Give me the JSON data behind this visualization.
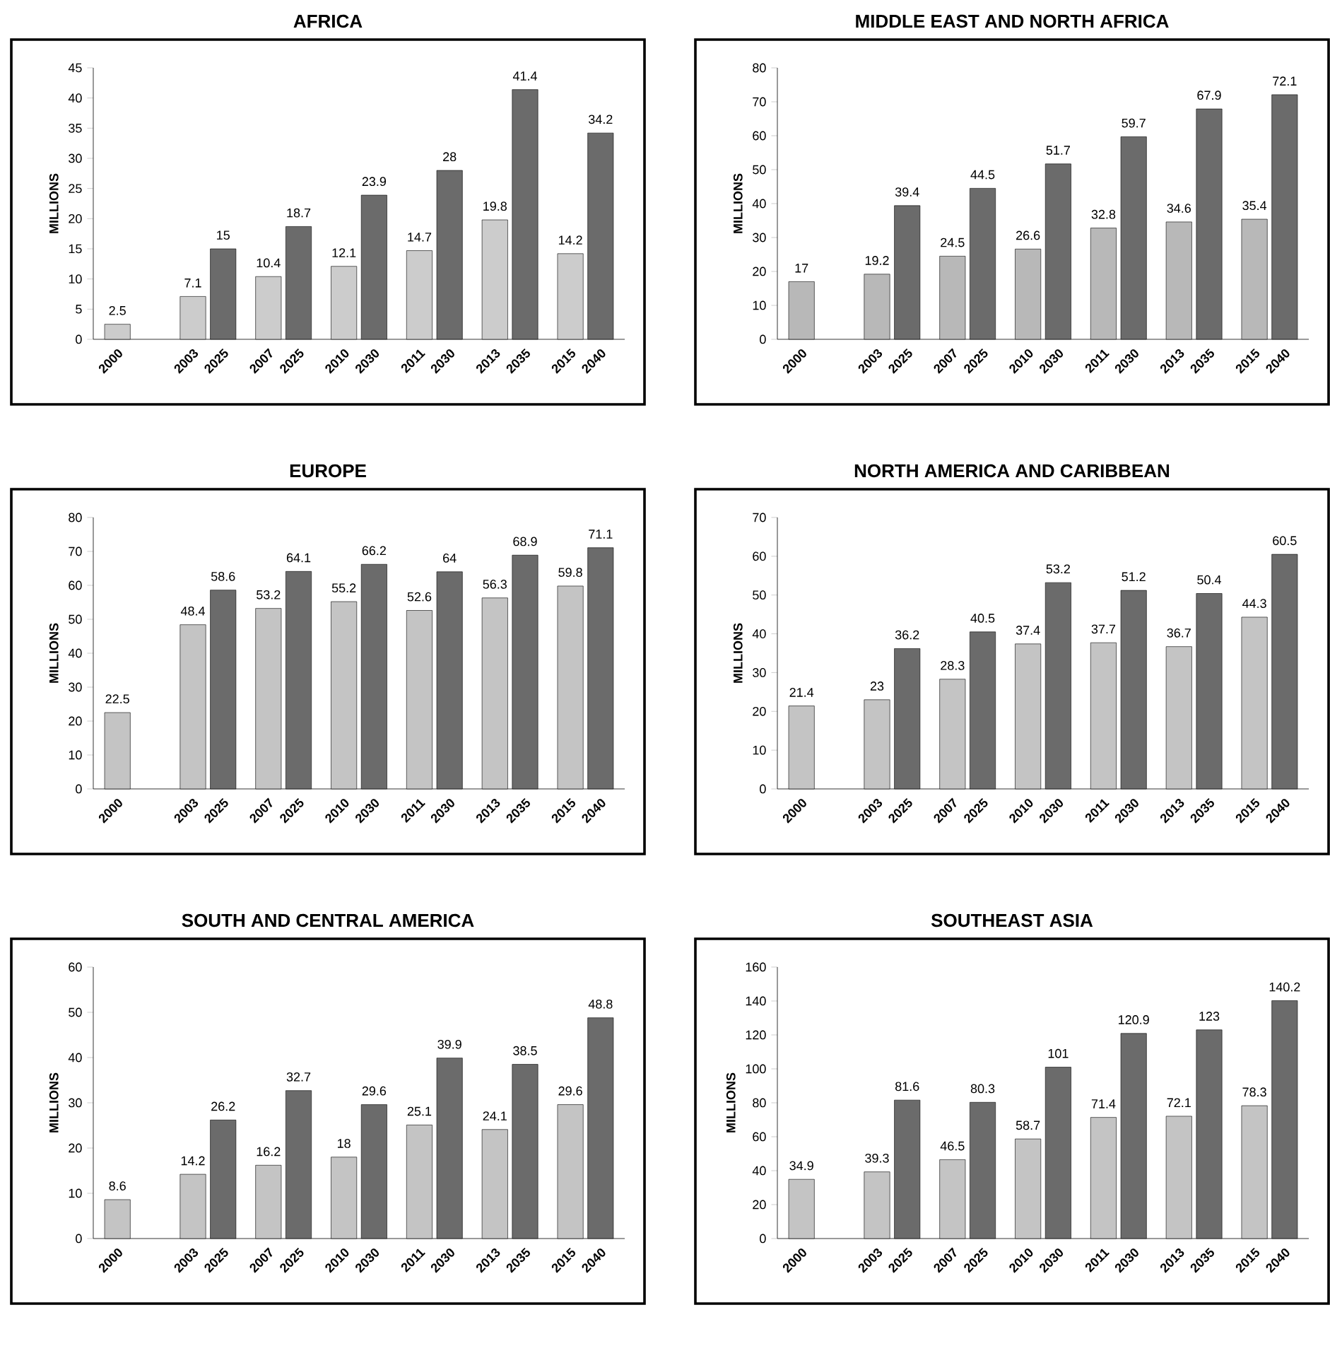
{
  "chart_data": [
    {
      "type": "bar",
      "title": "AFRICA",
      "ylabel": "MILLIONS",
      "categories": [
        "2000",
        null,
        "2003",
        "2025",
        "2007",
        "2025",
        "2010",
        "2030",
        "2011",
        "2030",
        "2013",
        "2035",
        "2015",
        "2040"
      ],
      "values": [
        2.5,
        null,
        7.1,
        15,
        10.4,
        18.7,
        12.1,
        23.9,
        14.7,
        28,
        19.8,
        41.4,
        14.2,
        34.2
      ],
      "colors": [
        "#cccccc",
        null,
        "#cccccc",
        "#6b6b6b",
        "#cccccc",
        "#6b6b6b",
        "#cccccc",
        "#6b6b6b",
        "#cccccc",
        "#6b6b6b",
        "#cccccc",
        "#6b6b6b",
        "#cccccc",
        "#6b6b6b"
      ],
      "ylim": [
        0,
        45
      ],
      "yticks": [
        0,
        5,
        10,
        15,
        20,
        25,
        30,
        35,
        40,
        45
      ],
      "data_labels": true
    },
    {
      "type": "bar",
      "title": "MIDDLE EAST AND NORTH AFRICA",
      "ylabel": "MILLIONS",
      "categories": [
        "2000",
        null,
        "2003",
        "2025",
        "2007",
        "2025",
        "2010",
        "2030",
        "2011",
        "2030",
        "2013",
        "2035",
        "2015",
        "2040"
      ],
      "values": [
        17,
        null,
        19.2,
        39.4,
        24.5,
        44.5,
        26.6,
        51.7,
        32.8,
        59.7,
        34.6,
        67.9,
        35.4,
        72.1
      ],
      "colors": [
        "#b8b8b8",
        null,
        "#b8b8b8",
        "#6b6b6b",
        "#b8b8b8",
        "#6b6b6b",
        "#b8b8b8",
        "#6b6b6b",
        "#b8b8b8",
        "#6b6b6b",
        "#b8b8b8",
        "#6b6b6b",
        "#b8b8b8",
        "#6b6b6b"
      ],
      "ylim": [
        0,
        80
      ],
      "yticks": [
        0,
        10,
        20,
        30,
        40,
        50,
        60,
        70,
        80
      ],
      "data_labels": true
    },
    {
      "type": "bar",
      "title": "EUROPE",
      "ylabel": "MILLIONS",
      "categories": [
        "2000",
        null,
        "2003",
        "2025",
        "2007",
        "2025",
        "2010",
        "2030",
        "2011",
        "2030",
        "2013",
        "2035",
        "2015",
        "2040"
      ],
      "values": [
        22.5,
        null,
        48.4,
        58.6,
        53.2,
        64.1,
        55.2,
        66.2,
        52.6,
        64,
        56.3,
        68.9,
        59.8,
        71.1
      ],
      "colors": [
        "#c4c4c4",
        null,
        "#c4c4c4",
        "#6b6b6b",
        "#c4c4c4",
        "#6b6b6b",
        "#c4c4c4",
        "#6b6b6b",
        "#c4c4c4",
        "#6b6b6b",
        "#c4c4c4",
        "#6b6b6b",
        "#c4c4c4",
        "#6b6b6b"
      ],
      "ylim": [
        0,
        80
      ],
      "yticks": [
        0,
        10,
        20,
        30,
        40,
        50,
        60,
        70,
        80
      ],
      "data_labels": true
    },
    {
      "type": "bar",
      "title": "NORTH AMERICA AND CARIBBEAN",
      "ylabel": "MILLIONS",
      "categories": [
        "2000",
        null,
        "2003",
        "2025",
        "2007",
        "2025",
        "2010",
        "2030",
        "2011",
        "2030",
        "2013",
        "2035",
        "2015",
        "2040"
      ],
      "values": [
        21.4,
        null,
        23,
        36.2,
        28.3,
        40.5,
        37.4,
        53.2,
        37.7,
        51.2,
        36.7,
        50.4,
        44.3,
        60.5
      ],
      "colors": [
        "#c4c4c4",
        null,
        "#c4c4c4",
        "#6b6b6b",
        "#c4c4c4",
        "#6b6b6b",
        "#c4c4c4",
        "#6b6b6b",
        "#c4c4c4",
        "#6b6b6b",
        "#c4c4c4",
        "#6b6b6b",
        "#c4c4c4",
        "#6b6b6b"
      ],
      "ylim": [
        0,
        70
      ],
      "yticks": [
        0,
        10,
        20,
        30,
        40,
        50,
        60,
        70
      ],
      "data_labels": true
    },
    {
      "type": "bar",
      "title": "SOUTH AND CENTRAL AMERICA",
      "ylabel": "MILLIONS",
      "categories": [
        "2000",
        null,
        "2003",
        "2025",
        "2007",
        "2025",
        "2010",
        "2030",
        "2011",
        "2030",
        "2013",
        "2035",
        "2015",
        "2040"
      ],
      "values": [
        8.6,
        null,
        14.2,
        26.2,
        16.2,
        32.7,
        18,
        29.6,
        25.1,
        39.9,
        24.1,
        38.5,
        29.6,
        48.8
      ],
      "colors": [
        "#c4c4c4",
        null,
        "#c4c4c4",
        "#6b6b6b",
        "#c4c4c4",
        "#6b6b6b",
        "#c4c4c4",
        "#6b6b6b",
        "#c4c4c4",
        "#6b6b6b",
        "#c4c4c4",
        "#6b6b6b",
        "#c4c4c4",
        "#6b6b6b"
      ],
      "ylim": [
        0,
        60
      ],
      "yticks": [
        0,
        10,
        20,
        30,
        40,
        50,
        60
      ],
      "data_labels": true
    },
    {
      "type": "bar",
      "title": "SOUTHEAST ASIA",
      "ylabel": "MILLIONS",
      "categories": [
        "2000",
        null,
        "2003",
        "2025",
        "2007",
        "2025",
        "2010",
        "2030",
        "2011",
        "2030",
        "2013",
        "2035",
        "2015",
        "2040"
      ],
      "values": [
        34.9,
        null,
        39.3,
        81.6,
        46.5,
        80.3,
        58.7,
        101,
        71.4,
        120.9,
        72.1,
        123,
        78.3,
        140.2
      ],
      "colors": [
        "#c4c4c4",
        null,
        "#c4c4c4",
        "#6b6b6b",
        "#c4c4c4",
        "#6b6b6b",
        "#c4c4c4",
        "#6b6b6b",
        "#c4c4c4",
        "#6b6b6b",
        "#c4c4c4",
        "#6b6b6b",
        "#c4c4c4",
        "#6b6b6b"
      ],
      "ylim": [
        0,
        160
      ],
      "yticks": [
        0,
        20,
        40,
        60,
        80,
        100,
        120,
        140,
        160
      ],
      "data_labels": true
    }
  ]
}
